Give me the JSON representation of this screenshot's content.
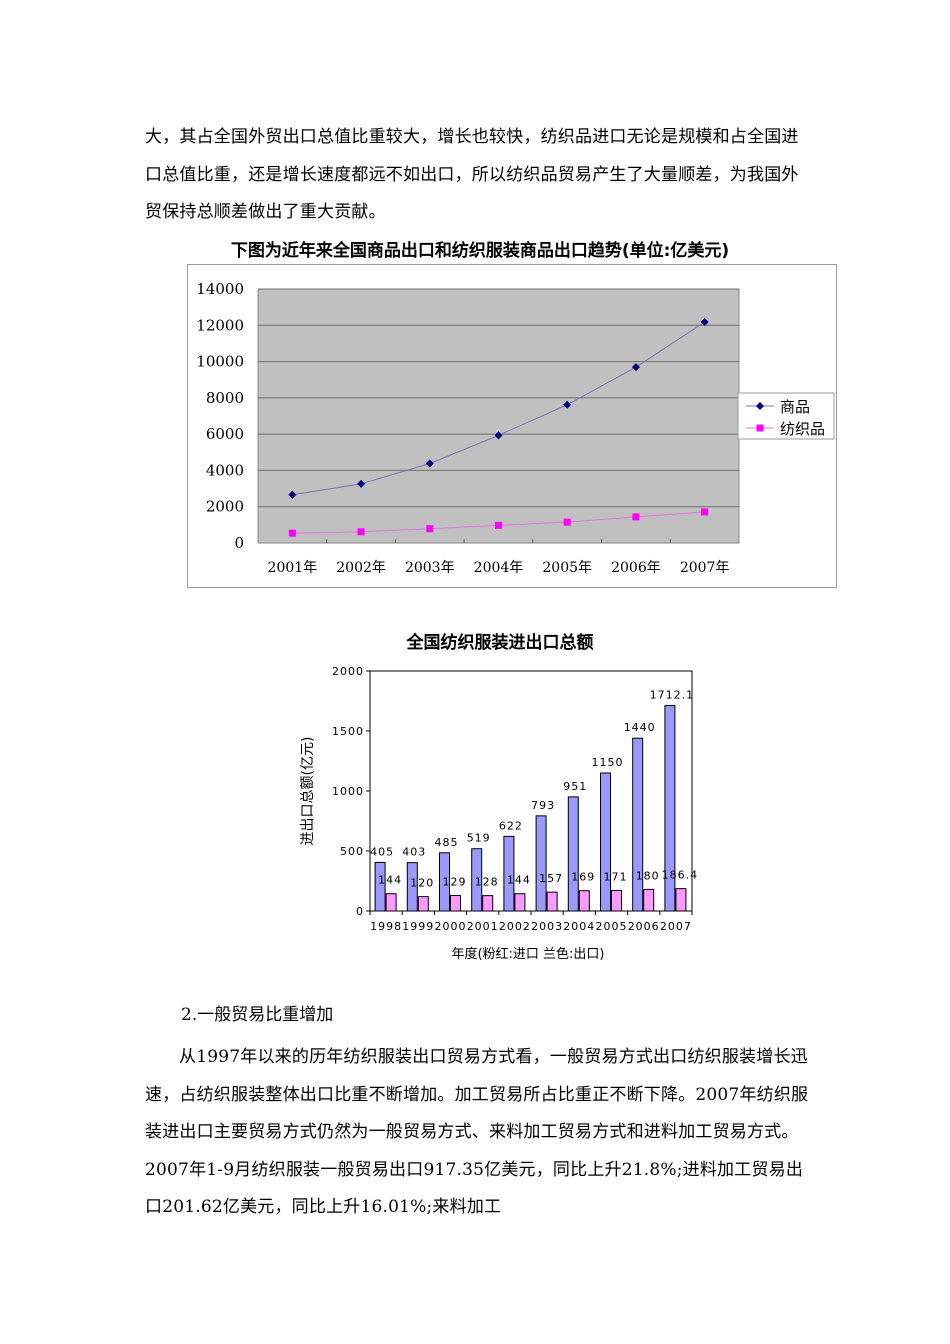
{
  "paragraph_1": "大，其占全国外贸出口总值比重较大，增长也较快，纺织品进口无论是规模和占全国进口总值比重，还是增长速度都远不如出口，所以纺织品贸易产生了大量顺差，为我国外贸保持总顺差做出了重大贡献。",
  "chart1_caption": "下图为近年来全国商品出口和纺织服装商品出口趋势(单位:亿美元)",
  "chart2_caption": "全国纺织服装进出口总额",
  "section_heading": "2.一般贸易比重增加",
  "paragraph_2": "从1997年以来的历年纺织服装出口贸易方式看，一般贸易方式出口纺织服装增长迅速，占纺织服装整体出口比重不断增加。加工贸易所占比重正不断下降。2007年纺织服装进出口主要贸易方式仍然为一般贸易方式、来料加工贸易方式和进料加工贸易方式。2007年1-9月纺织服装一般贸易出口917.35亿美元，同比上升21.8%;进料加工贸易出口201.62亿美元，同比上升16.01%;来料加工",
  "chart_data": [
    {
      "type": "line",
      "title": "下图为近年来全国商品出口和纺织服装商品出口趋势(单位:亿美元)",
      "categories": [
        "2001年",
        "2002年",
        "2003年",
        "2004年",
        "2005年",
        "2006年",
        "2007年"
      ],
      "series": [
        {
          "name": "商品",
          "values": [
            2660,
            3256,
            4382,
            5933,
            7620,
            9691,
            12180
          ],
          "color": "#000080",
          "marker": "diamond"
        },
        {
          "name": "纺织品",
          "values": [
            543,
            618,
            788,
            974,
            1150,
            1440,
            1712
          ],
          "color": "#ff00ff",
          "marker": "square"
        }
      ],
      "xlabel": "",
      "ylabel": "",
      "ylim": [
        0,
        14000
      ],
      "yticks": [
        0,
        2000,
        4000,
        6000,
        8000,
        10000,
        12000,
        14000
      ],
      "grid": true,
      "plot_background": "#c0c0c0",
      "legend_position": "right"
    },
    {
      "type": "bar",
      "title": "全国纺织服装进出口总额",
      "categories": [
        "1998",
        "1999",
        "2000",
        "2001",
        "2002",
        "2003",
        "2004",
        "2005",
        "2006",
        "2007"
      ],
      "series": [
        {
          "name": "出口 (兰色)",
          "values": [
            405,
            403,
            485,
            519,
            622,
            793,
            951,
            1150,
            1440,
            1712.1
          ],
          "labels": [
            "405",
            "403",
            "485",
            "519",
            "622",
            "793",
            "951",
            "1150",
            "1440",
            "1712.1"
          ],
          "color": "#9999ff"
        },
        {
          "name": "进口 (粉红)",
          "values": [
            144,
            120,
            129,
            128,
            144,
            157,
            169,
            171,
            180,
            186.4
          ],
          "labels": [
            "144",
            "120",
            "129",
            "128",
            "144",
            "157",
            "169",
            "171",
            "180",
            "186.4"
          ],
          "color": "#ff99ff"
        }
      ],
      "xlabel": "年度(粉红:进口 兰色:出口)",
      "ylabel": "进出口总额(亿元)",
      "ylim": [
        0,
        2000
      ],
      "yticks": [
        0,
        500,
        1000,
        1500,
        2000
      ],
      "grid": false,
      "legend_position": "none"
    }
  ]
}
